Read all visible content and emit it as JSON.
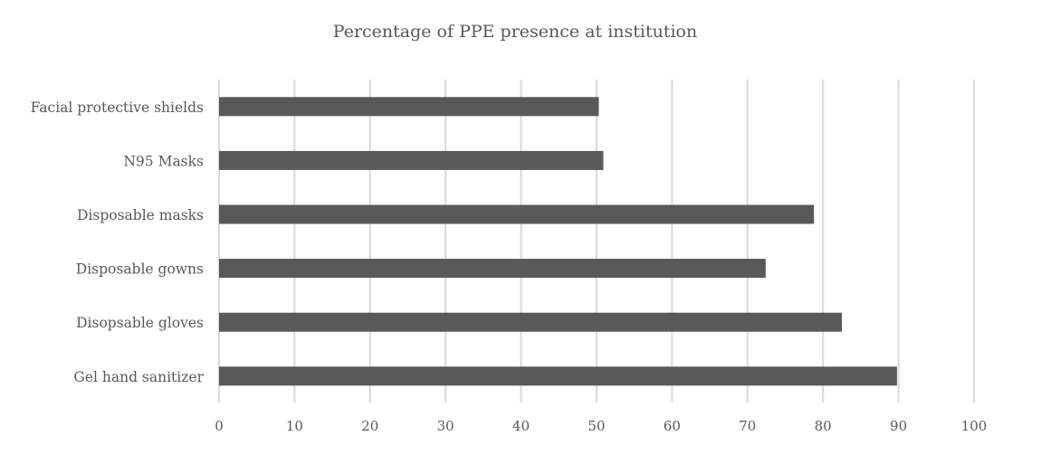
{
  "chart_data": {
    "type": "bar",
    "orientation": "horizontal",
    "title": "Percentage of PPE presence at institution",
    "xlabel": "",
    "ylabel": "",
    "categories": [
      "Gel hand sanitizer",
      "Disopsable gloves",
      "Disposable gowns",
      "Disposable masks",
      "N95 Masks",
      "Facial protective shields"
    ],
    "values": [
      89.8,
      82.5,
      72.4,
      78.8,
      50.9,
      50.3
    ],
    "xlim": [
      0,
      100
    ],
    "ticks": [
      "0",
      "10",
      "20",
      "30",
      "40",
      "50",
      "60",
      "70",
      "80",
      "90",
      "100"
    ],
    "grid": true,
    "legend": "none",
    "bar_color": "#595959",
    "grid_color": "#d9d9d9"
  }
}
